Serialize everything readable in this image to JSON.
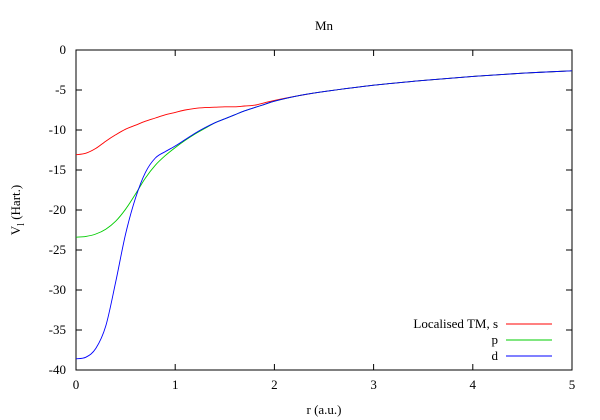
{
  "chart_data": {
    "type": "line",
    "title": "Mn",
    "xlabel": "r (a.u.)",
    "ylabel_main": "V",
    "ylabel_sub": "l",
    "ylabel_rest": " (Hart.)",
    "xlim": [
      0,
      5
    ],
    "ylim": [
      -40,
      0
    ],
    "xticks": [
      0,
      1,
      2,
      3,
      4,
      5
    ],
    "yticks": [
      0,
      -5,
      -10,
      -15,
      -20,
      -25,
      -30,
      -35,
      -40
    ],
    "grid": false,
    "legend_position": "bottom-right",
    "x": [
      0,
      0.1,
      0.2,
      0.3,
      0.4,
      0.5,
      0.6,
      0.7,
      0.8,
      0.9,
      1.0,
      1.1,
      1.2,
      1.3,
      1.4,
      1.5,
      1.6,
      1.7,
      1.8,
      1.9,
      2.0,
      2.25,
      2.5,
      3.0,
      3.5,
      4.0,
      4.5,
      5.0
    ],
    "series": [
      {
        "name": "Localised TM, s",
        "color": "#ff0000",
        "values": [
          -13.1,
          -12.9,
          -12.3,
          -11.4,
          -10.6,
          -9.9,
          -9.4,
          -8.9,
          -8.5,
          -8.1,
          -7.8,
          -7.5,
          -7.3,
          -7.2,
          -7.15,
          -7.1,
          -7.1,
          -7.0,
          -6.9,
          -6.6,
          -6.3,
          -5.7,
          -5.2,
          -4.4,
          -3.8,
          -3.3,
          -2.9,
          -2.6
        ]
      },
      {
        "name": "p",
        "color": "#00cc00",
        "values": [
          -23.4,
          -23.3,
          -23.0,
          -22.4,
          -21.4,
          -19.9,
          -18.0,
          -16.0,
          -14.4,
          -13.2,
          -12.2,
          -11.3,
          -10.5,
          -9.8,
          -9.1,
          -8.6,
          -8.1,
          -7.6,
          -7.2,
          -6.8,
          -6.4,
          -5.7,
          -5.2,
          -4.4,
          -3.8,
          -3.3,
          -2.9,
          -2.6
        ]
      },
      {
        "name": "d",
        "color": "#0000ff",
        "values": [
          -38.6,
          -38.4,
          -37.3,
          -34.5,
          -29.0,
          -23.0,
          -18.5,
          -15.3,
          -13.5,
          -12.7,
          -12.0,
          -11.2,
          -10.4,
          -9.7,
          -9.1,
          -8.6,
          -8.1,
          -7.6,
          -7.2,
          -6.8,
          -6.4,
          -5.7,
          -5.2,
          -4.4,
          -3.8,
          -3.3,
          -2.9,
          -2.6
        ]
      }
    ]
  }
}
